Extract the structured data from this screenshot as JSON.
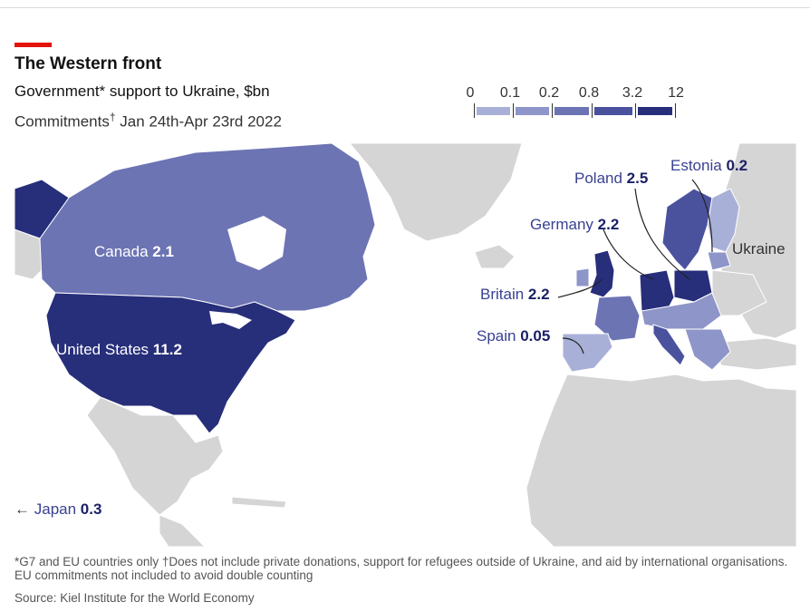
{
  "header": {
    "title": "The Western front",
    "subtitle": "Government* support to Ukraine, $bn",
    "subtitle2_prefix": "Commitments",
    "subtitle2_mark": "†",
    "subtitle2_suffix": " Jan 24th-Apr 23rd 2022"
  },
  "legend": {
    "ticks": [
      "0",
      "0.1",
      "0.2",
      "0.8",
      "3.2",
      "12"
    ],
    "colors": [
      "#a9b0d8",
      "#8d95c9",
      "#6c74b4",
      "#4a529e",
      "#272e7a"
    ]
  },
  "colors": {
    "accent": "#e3120b",
    "land_grey": "#d5d5d5",
    "water": "#ffffff"
  },
  "labels": {
    "canada": {
      "name": "Canada",
      "value": "2.1"
    },
    "us": {
      "name": "United States",
      "value": "11.2"
    },
    "poland": {
      "name": "Poland",
      "value": "2.5"
    },
    "estonia": {
      "name": "Estonia",
      "value": "0.2"
    },
    "germany": {
      "name": "Germany",
      "value": "2.2"
    },
    "ukraine": {
      "name": "Ukraine"
    },
    "britain": {
      "name": "Britain",
      "value": "2.2"
    },
    "spain": {
      "name": "Spain",
      "value": "0.05"
    },
    "japan": {
      "arrow": "←",
      "name": "Japan",
      "value": "0.3"
    }
  },
  "footer": {
    "footnote": "*G7 and EU countries only †Does not include private donations, support for refugees outside of Ukraine, and aid by international organisations. EU commitments not included to avoid double counting",
    "source": "Source: Kiel Institute for the World Economy"
  }
}
